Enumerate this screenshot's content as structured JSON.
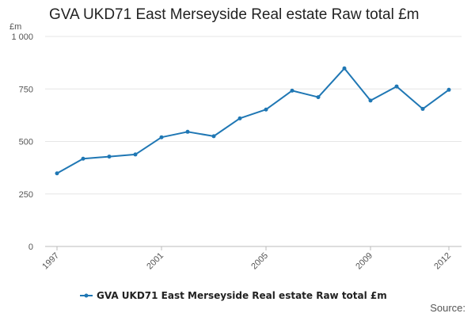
{
  "chart_data": {
    "type": "line",
    "title": "GVA UKD71 East Merseyside Real estate Raw total £m",
    "y_unit": "£m",
    "x": [
      1997,
      1998,
      1999,
      2000,
      2001,
      2002,
      2003,
      2004,
      2005,
      2006,
      2007,
      2008,
      2009,
      2010,
      2011,
      2012
    ],
    "series": [
      {
        "name": "GVA UKD71 East Merseyside Real estate Raw total £m",
        "values": [
          348,
          418,
          428,
          438,
          520,
          546,
          525,
          610,
          652,
          742,
          711,
          848,
          695,
          762,
          655,
          746
        ],
        "color": "#1f77b4"
      }
    ],
    "ylim": [
      0,
      1000
    ],
    "yticks": [
      0,
      250,
      500,
      750,
      1000
    ],
    "ytick_labels": [
      "0",
      "250",
      "500",
      "750",
      "1 000"
    ],
    "xticks": [
      1997,
      2001,
      2005,
      2009,
      2012
    ],
    "xtick_labels": [
      "1997",
      "2001",
      "2005",
      "2009",
      "2012"
    ],
    "grid": true,
    "legend_position": "bottom"
  },
  "source_text": "Source:"
}
